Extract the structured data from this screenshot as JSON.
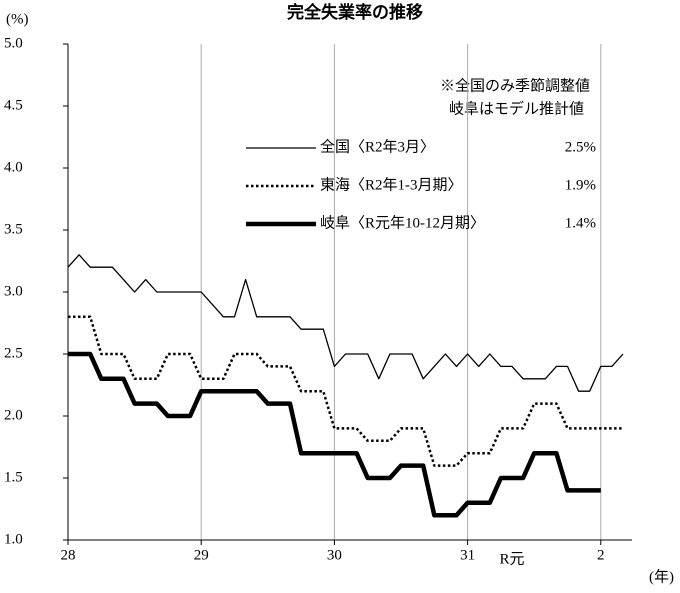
{
  "chart_data": {
    "type": "line",
    "title": "完全失業率の推移",
    "y_label": "(%)",
    "x_label": "(年)",
    "categories": [
      "28",
      null,
      null,
      null,
      null,
      null,
      null,
      null,
      null,
      null,
      null,
      null,
      "29",
      null,
      null,
      null,
      null,
      null,
      null,
      null,
      null,
      null,
      null,
      null,
      "30",
      null,
      null,
      null,
      null,
      null,
      null,
      null,
      null,
      null,
      null,
      null,
      "31",
      null,
      null,
      null,
      "R元",
      null,
      null,
      null,
      null,
      null,
      null,
      null,
      "2",
      null,
      null
    ],
    "ylim": [
      1,
      5
    ],
    "yticks": [
      {
        "value": 1,
        "label": "1.0"
      },
      {
        "value": 1.5,
        "label": "1.5"
      },
      {
        "value": 2,
        "label": "2.0"
      },
      {
        "value": 2.5,
        "label": "2.5"
      },
      {
        "value": 3,
        "label": "3.0"
      },
      {
        "value": 3.5,
        "label": "3.5"
      },
      {
        "value": 4,
        "label": "4.0"
      },
      {
        "value": 4.5,
        "label": "4.5"
      },
      {
        "value": 5,
        "label": "5.0"
      }
    ],
    "grid": "x",
    "annotations": [
      "※全国のみ季節調整値",
      "岐阜はモデル推計値"
    ],
    "series": [
      {
        "name": "全国〈R2年3月〉",
        "latest_label": "2.5%",
        "color": "#000000",
        "style": "solid",
        "width": 1.3,
        "values": [
          3.2,
          3.3,
          3.2,
          3.2,
          3.2,
          3.1,
          3.0,
          3.1,
          3.0,
          3.0,
          3.0,
          3.0,
          3.0,
          2.9,
          2.8,
          2.8,
          3.1,
          2.8,
          2.8,
          2.8,
          2.8,
          2.7,
          2.7,
          2.7,
          2.4,
          2.5,
          2.5,
          2.5,
          2.3,
          2.5,
          2.5,
          2.5,
          2.3,
          2.4,
          2.5,
          2.4,
          2.5,
          2.4,
          2.5,
          2.4,
          2.4,
          2.3,
          2.3,
          2.3,
          2.4,
          2.4,
          2.2,
          2.2,
          2.4,
          2.4,
          2.5
        ]
      },
      {
        "name": "東海〈R2年1-3月期〉",
        "latest_label": "1.9%",
        "color": "#000000",
        "style": "dotted",
        "width": 2.5,
        "values": [
          2.8,
          2.8,
          2.8,
          2.5,
          2.5,
          2.5,
          2.3,
          2.3,
          2.3,
          2.5,
          2.5,
          2.5,
          2.3,
          2.3,
          2.3,
          2.5,
          2.5,
          2.5,
          2.4,
          2.4,
          2.4,
          2.2,
          2.2,
          2.2,
          1.9,
          1.9,
          1.9,
          1.8,
          1.8,
          1.8,
          1.9,
          1.9,
          1.9,
          1.6,
          1.6,
          1.6,
          1.7,
          1.7,
          1.7,
          1.9,
          1.9,
          1.9,
          2.1,
          2.1,
          2.1,
          1.9,
          1.9,
          1.9,
          1.9,
          1.9,
          1.9
        ]
      },
      {
        "name": "岐阜〈R元年10-12月期〉",
        "latest_label": "1.4%",
        "color": "#000000",
        "style": "solid",
        "width": 4.5,
        "values": [
          2.5,
          2.5,
          2.5,
          2.3,
          2.3,
          2.3,
          2.1,
          2.1,
          2.1,
          2.0,
          2.0,
          2.0,
          2.2,
          2.2,
          2.2,
          2.2,
          2.2,
          2.2,
          2.1,
          2.1,
          2.1,
          1.7,
          1.7,
          1.7,
          1.7,
          1.7,
          1.7,
          1.5,
          1.5,
          1.5,
          1.6,
          1.6,
          1.6,
          1.2,
          1.2,
          1.2,
          1.3,
          1.3,
          1.3,
          1.5,
          1.5,
          1.5,
          1.7,
          1.7,
          1.7,
          1.4,
          1.4,
          1.4,
          1.4,
          null,
          null
        ]
      }
    ]
  }
}
